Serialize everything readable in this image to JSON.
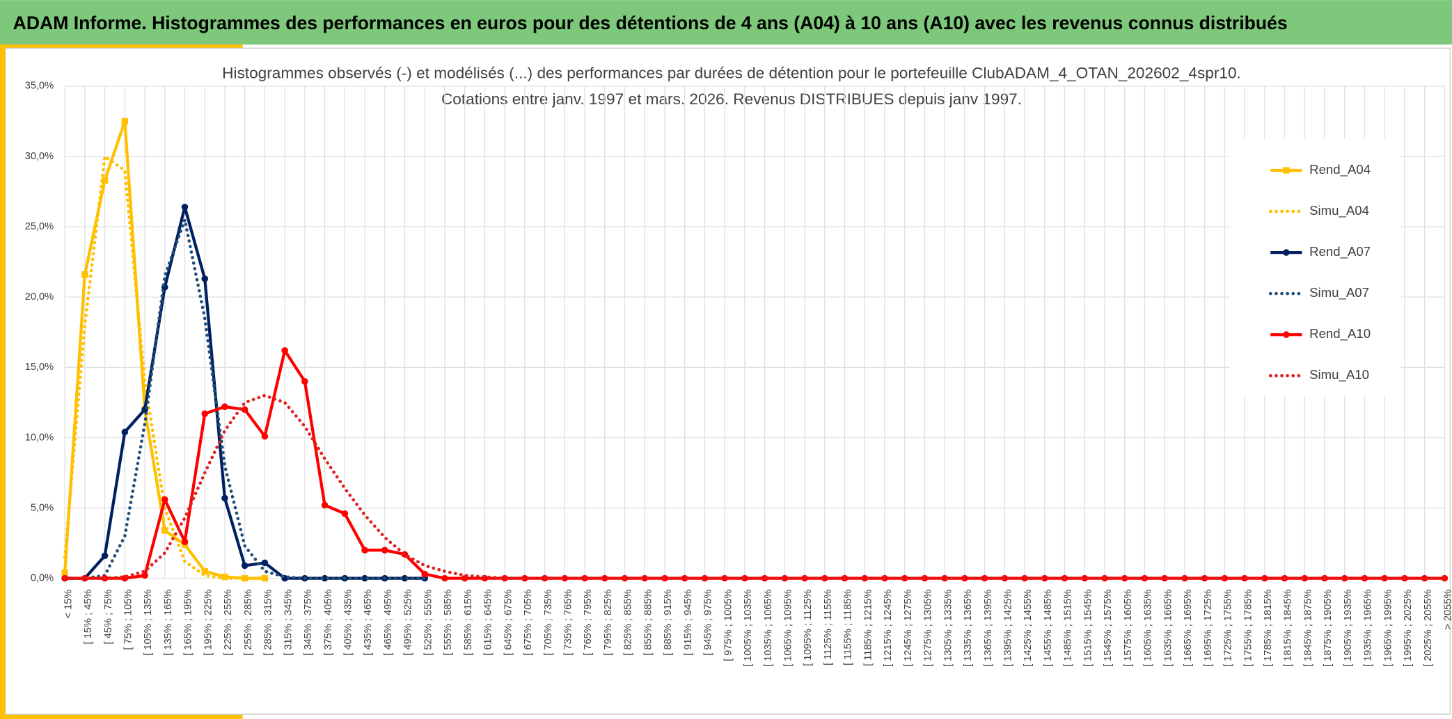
{
  "header": {
    "title": "ADAM Informe. Histogrammes des performances en euros pour des détentions de 4 ans (A04) à 10 ans (A10) avec les revenus connus distribués"
  },
  "chart_data": {
    "type": "line",
    "title": "Histogrammes observés (-) et modélisés (...) des performances par durées de détention pour le portefeuille ClubADAM_4_OTAN_202602_4spr10.",
    "subtitle": "Cotations entre janv. 1997 et mars. 2026. Revenus DISTRIBUES depuis janv 1997.",
    "categories": [
      "< 15%",
      "[ 15% ; 45%",
      "[ 45% ; 75%",
      "[ 75% ; 105%",
      "[ 105% ; 135%",
      "[ 135% ; 165%",
      "[ 165% ; 195%",
      "[ 195% ; 225%",
      "[ 225% ; 255%",
      "[ 255% ; 285%",
      "[ 285% ; 315%",
      "[ 315% ; 345%",
      "[ 345% ; 375%",
      "[ 375% ; 405%",
      "[ 405% ; 435%",
      "[ 435% ; 465%",
      "[ 465% ; 495%",
      "[ 495% ; 525%",
      "[ 525% ; 555%",
      "[ 555% ; 585%",
      "[ 585% ; 615%",
      "[ 615% ; 645%",
      "[ 645% ; 675%",
      "[ 675% ; 705%",
      "[ 705% ; 735%",
      "[ 735% ; 765%",
      "[ 765% ; 795%",
      "[ 795% ; 825%",
      "[ 825% ; 855%",
      "[ 855% ; 885%",
      "[ 885% ; 915%",
      "[ 915% ; 945%",
      "[ 945% ; 975%",
      "[ 975% ; 1005%",
      "[ 1005% ; 1035%",
      "[ 1035% ; 1065%",
      "[ 1065% ; 1095%",
      "[ 1095% ; 1125%",
      "[ 1125% ; 1155%",
      "[ 1155% ; 1185%",
      "[ 1185% ; 1215%",
      "[ 1215% ; 1245%",
      "[ 1245% ; 1275%",
      "[ 1275% ; 1305%",
      "[ 1305% ; 1335%",
      "[ 1335% ; 1365%",
      "[ 1365% ; 1395%",
      "[ 1395% ; 1425%",
      "[ 1425% ; 1455%",
      "[ 1455% ; 1485%",
      "[ 1485% ; 1515%",
      "[ 1515% ; 1545%",
      "[ 1545% ; 1575%",
      "[ 1575% ; 1605%",
      "[ 1605% ; 1635%",
      "[ 1635% ; 1665%",
      "[ 1665% ; 1695%",
      "[ 1695% ; 1725%",
      "[ 1725% ; 1755%",
      "[ 1755% ; 1785%",
      "[ 1785% ; 1815%",
      "[ 1815% ; 1845%",
      "[ 1845% ; 1875%",
      "[ 1875% ; 1905%",
      "[ 1905% ; 1935%",
      "[ 1935% ; 1965%",
      "[ 1965% ; 1995%",
      "[ 1995% ; 2025%",
      "[ 2025% ; 2055%",
      "> 2055%"
    ],
    "series": [
      {
        "name": "Rend_A04",
        "color": "#ffc000",
        "line_style": "solid",
        "marker": "square",
        "values": [
          0.4,
          21.6,
          28.3,
          32.5,
          12.0,
          3.4,
          2.4,
          0.5,
          0.1,
          0,
          0,
          null,
          null,
          null,
          null,
          null,
          null,
          null,
          null,
          null,
          null,
          null,
          null,
          null,
          null,
          null,
          null,
          null,
          null,
          null,
          null,
          null,
          null,
          null,
          null,
          null,
          null,
          null,
          null,
          null,
          null,
          null,
          null,
          null,
          null,
          null,
          null,
          null,
          null,
          null,
          null,
          null,
          null,
          null,
          null,
          null,
          null,
          null,
          null,
          null,
          null,
          null,
          null,
          null,
          null,
          null,
          null,
          null,
          null,
          null
        ]
      },
      {
        "name": "Simu_A04",
        "color": "#ffc000",
        "line_style": "dotted",
        "marker": "none",
        "values": [
          1.5,
          18,
          30,
          29,
          14,
          5,
          1.2,
          0.2,
          0,
          0,
          0,
          null,
          null,
          null,
          null,
          null,
          null,
          null,
          null,
          null,
          null,
          null,
          null,
          null,
          null,
          null,
          null,
          null,
          null,
          null,
          null,
          null,
          null,
          null,
          null,
          null,
          null,
          null,
          null,
          null,
          null,
          null,
          null,
          null,
          null,
          null,
          null,
          null,
          null,
          null,
          null,
          null,
          null,
          null,
          null,
          null,
          null,
          null,
          null,
          null,
          null,
          null,
          null,
          null,
          null,
          null,
          null,
          null,
          null,
          null
        ]
      },
      {
        "name": "Rend_A07",
        "color": "#002060",
        "line_style": "solid",
        "marker": "circle",
        "values": [
          0,
          0,
          1.6,
          10.4,
          12,
          20.7,
          26.4,
          21.3,
          5.7,
          0.9,
          1.1,
          0,
          0,
          0,
          0,
          0,
          0,
          0,
          0,
          null,
          null,
          null,
          null,
          null,
          null,
          null,
          null,
          null,
          null,
          null,
          null,
          null,
          null,
          null,
          null,
          null,
          null,
          null,
          null,
          null,
          null,
          null,
          null,
          null,
          null,
          null,
          null,
          null,
          null,
          null,
          null,
          null,
          null,
          null,
          null,
          null,
          null,
          null,
          null,
          null,
          null,
          null,
          null,
          null,
          null,
          null,
          null,
          null,
          null,
          null
        ]
      },
      {
        "name": "Simu_A07",
        "color": "#1f4e79",
        "line_style": "dotted",
        "marker": "none",
        "values": [
          0,
          0,
          0.2,
          3,
          11,
          21.5,
          25.5,
          18.5,
          8,
          2.3,
          0.5,
          0.1,
          0,
          0,
          0,
          0,
          0,
          0,
          0,
          null,
          null,
          null,
          null,
          null,
          null,
          null,
          null,
          null,
          null,
          null,
          null,
          null,
          null,
          null,
          null,
          null,
          null,
          null,
          null,
          null,
          null,
          null,
          null,
          null,
          null,
          null,
          null,
          null,
          null,
          null,
          null,
          null,
          null,
          null,
          null,
          null,
          null,
          null,
          null,
          null,
          null,
          null,
          null,
          null,
          null,
          null,
          null,
          null,
          null,
          null
        ]
      },
      {
        "name": "Rend_A10",
        "color": "#ff0000",
        "line_style": "solid",
        "marker": "circle",
        "values": [
          0,
          0,
          0,
          0,
          0.2,
          5.6,
          2.6,
          11.7,
          12.2,
          12.0,
          10.1,
          16.2,
          14.0,
          5.2,
          4.6,
          2.0,
          2.0,
          1.7,
          0.3,
          0,
          0,
          0,
          0,
          0,
          0,
          0,
          0,
          0,
          0,
          0,
          0,
          0,
          0,
          0,
          0,
          0,
          0,
          0,
          0,
          0,
          0,
          0,
          0,
          0,
          0,
          0,
          0,
          0,
          0,
          0,
          0,
          0,
          0,
          0,
          0,
          0,
          0,
          0,
          0,
          0,
          0,
          0,
          0,
          0,
          0,
          0,
          0,
          0,
          0,
          0
        ]
      },
      {
        "name": "Simu_A10",
        "color": "#e02020",
        "line_style": "dotted",
        "marker": "none",
        "values": [
          0,
          0,
          0,
          0.1,
          0.5,
          1.8,
          4.3,
          7.5,
          10.5,
          12.5,
          13.0,
          12.5,
          10.8,
          8.5,
          6.4,
          4.5,
          2.9,
          1.7,
          0.9,
          0.5,
          0.2,
          0.1,
          0,
          0,
          0,
          0,
          0,
          0,
          0,
          0,
          0,
          0,
          0,
          0,
          0,
          0,
          0,
          0,
          0,
          0,
          0,
          0,
          0,
          0,
          0,
          0,
          0,
          0,
          0,
          0,
          0,
          0,
          0,
          0,
          0,
          0,
          0,
          0,
          0,
          0,
          0,
          0,
          0,
          0,
          0,
          0,
          0,
          0,
          0,
          0
        ]
      }
    ],
    "ylim": [
      0,
      35
    ],
    "yticks": [
      {
        "value": 0,
        "label": "0,0%"
      },
      {
        "value": 5,
        "label": "5,0%"
      },
      {
        "value": 10,
        "label": "10,0%"
      },
      {
        "value": 15,
        "label": "15,0%"
      },
      {
        "value": 20,
        "label": "20,0%"
      },
      {
        "value": 25,
        "label": "25,0%"
      },
      {
        "value": 30,
        "label": "30,0%"
      },
      {
        "value": 35,
        "label": "35,0%"
      }
    ],
    "grid": true,
    "legend": "right"
  }
}
